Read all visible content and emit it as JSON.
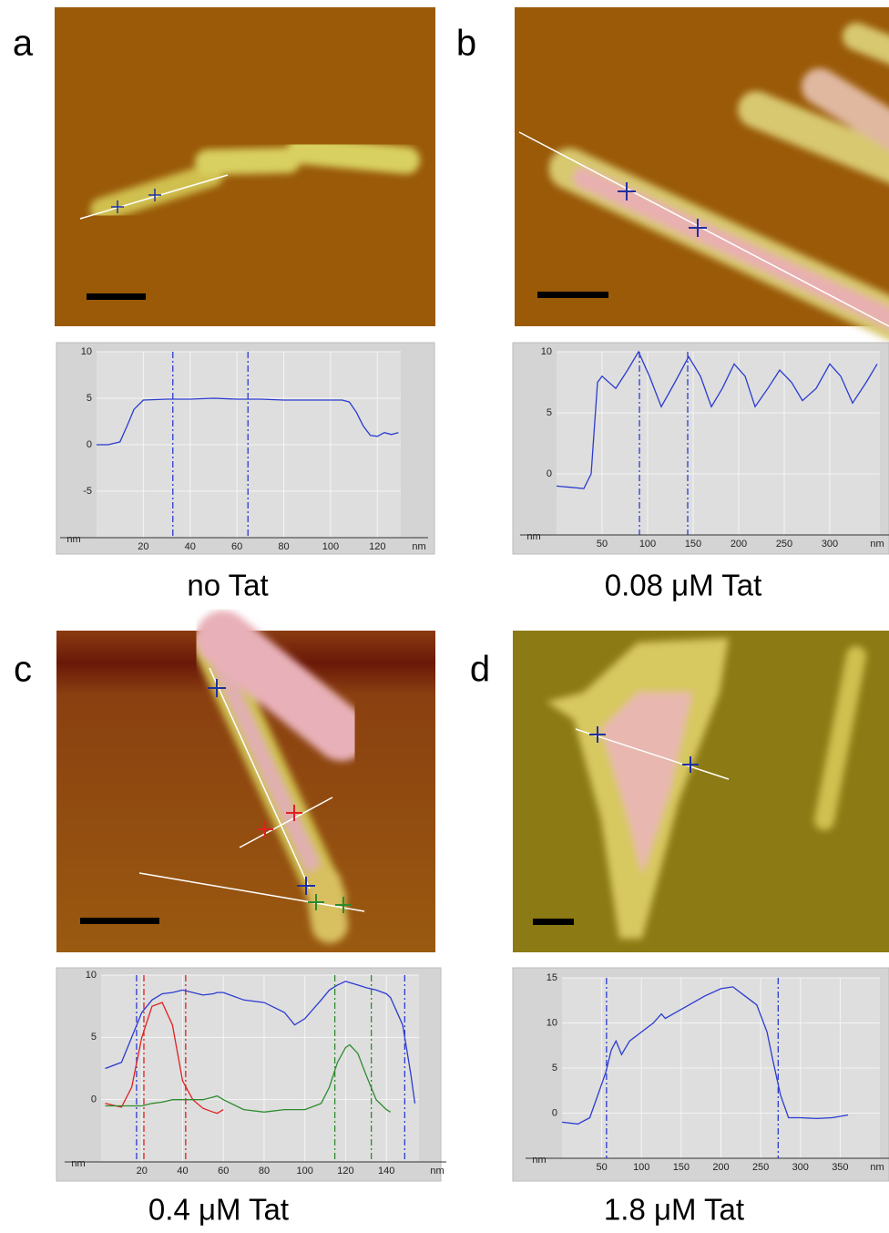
{
  "chart_data": [
    {
      "type": "line",
      "panel": "a",
      "caption": "no Tat",
      "xlabel": "nm",
      "ylabel": "nm",
      "xlim": [
        0,
        130
      ],
      "ylim": [
        -10,
        10
      ],
      "xticks": [
        20,
        40,
        60,
        80,
        100,
        120
      ],
      "yticks": [
        -5,
        0,
        5,
        10
      ],
      "grid": true,
      "x": [
        0,
        5,
        10,
        13,
        16,
        20,
        30,
        40,
        50,
        60,
        70,
        80,
        90,
        100,
        105,
        108,
        111,
        114,
        117,
        120,
        123,
        126,
        129
      ],
      "series": [
        {
          "color": "#2b3bd0",
          "values": [
            0,
            0,
            0.3,
            2,
            3.8,
            4.8,
            4.9,
            4.9,
            5,
            4.9,
            4.9,
            4.8,
            4.8,
            4.8,
            4.8,
            4.6,
            3.5,
            2,
            1,
            0.9,
            1.3,
            1.1,
            1.3
          ]
        }
      ],
      "cursors": [
        {
          "value": 32.6,
          "color": "#2b3bd0"
        },
        {
          "value": 64.7,
          "color": "#2b3bd0"
        }
      ]
    },
    {
      "type": "line",
      "panel": "b",
      "caption": "0.08 μM Tat",
      "xlabel": "nm",
      "ylabel": "nm",
      "xlim": [
        0,
        355
      ],
      "ylim": [
        -5,
        10
      ],
      "xticks": [
        50,
        100,
        150,
        200,
        250,
        300
      ],
      "yticks": [
        0,
        5,
        10
      ],
      "grid": true,
      "x": [
        0,
        15,
        30,
        38,
        45,
        50,
        65,
        78,
        90,
        102,
        115,
        130,
        145,
        158,
        170,
        182,
        195,
        207,
        218,
        232,
        245,
        258,
        270,
        285,
        300,
        312,
        325,
        340,
        352
      ],
      "series": [
        {
          "color": "#2b3bd0",
          "values": [
            -1,
            -1.1,
            -1.2,
            0,
            7.5,
            8,
            7,
            8.5,
            10,
            8,
            5.5,
            7.5,
            9.6,
            8,
            5.5,
            7,
            9,
            8,
            5.5,
            7,
            8.5,
            7.5,
            6,
            7,
            9,
            8,
            5.8,
            7.5,
            9
          ]
        }
      ],
      "cursors": [
        {
          "value": 91,
          "color": "#2b3bd0"
        },
        {
          "value": 144,
          "color": "#2b3bd0"
        }
      ]
    },
    {
      "type": "line",
      "panel": "c",
      "caption": "0.4 μM Tat",
      "xlabel": "nm",
      "ylabel": "nm",
      "xlim": [
        0,
        156
      ],
      "ylim": [
        -5,
        10
      ],
      "xticks": [
        20,
        40,
        60,
        80,
        100,
        120,
        140
      ],
      "yticks": [
        0,
        5,
        10
      ],
      "grid": true,
      "x": [
        2,
        10,
        15,
        20,
        25,
        30,
        35,
        40,
        45,
        50,
        55,
        57,
        60,
        70,
        80,
        90,
        95,
        100,
        108,
        112,
        116,
        120,
        122,
        126,
        130,
        135,
        140,
        142,
        148,
        152,
        154
      ],
      "series": [
        {
          "color": "#2b3bd0",
          "values": [
            2.5,
            3,
            5,
            7,
            8,
            8.5,
            8.6,
            8.8,
            8.6,
            8.4,
            8.5,
            8.6,
            8.6,
            8,
            7.8,
            7,
            6,
            6.5,
            8,
            8.8,
            9.2,
            9.5,
            9.4,
            9.2,
            9,
            8.8,
            8.5,
            8.2,
            6,
            2,
            -0.3
          ]
        },
        {
          "color": "#e02020",
          "values": [
            -0.3,
            -0.6,
            1,
            5,
            7.5,
            7.8,
            6,
            1.5,
            0,
            -0.7,
            -1,
            -1.1,
            -0.8,
            null,
            null,
            null,
            null,
            null,
            null,
            null,
            null,
            null,
            null,
            null,
            null,
            null,
            null,
            null,
            null,
            null,
            null
          ]
        },
        {
          "color": "#2e8b2e",
          "values": [
            -0.5,
            -0.5,
            -0.5,
            -0.5,
            -0.3,
            -0.2,
            0,
            0,
            0,
            0,
            0.2,
            0.3,
            0,
            -0.8,
            -1,
            -0.8,
            -0.8,
            -0.8,
            -0.3,
            1,
            3,
            4.2,
            4.4,
            3.7,
            2,
            0,
            -0.8,
            -1,
            null,
            null,
            null
          ]
        }
      ],
      "cursors": [
        {
          "value": 17.4,
          "color": "#2b3bd0"
        },
        {
          "value": 149,
          "color": "#2b3bd0"
        },
        {
          "value": 21,
          "color": "#e02020"
        },
        {
          "value": 41.5,
          "color": "#e02020"
        },
        {
          "value": 114.7,
          "color": "#2e8b2e"
        },
        {
          "value": 132.6,
          "color": "#2e8b2e"
        }
      ]
    },
    {
      "type": "line",
      "panel": "d",
      "caption": "1.8 μM Tat",
      "xlabel": "nm",
      "ylabel": "nm",
      "xlim": [
        0,
        400
      ],
      "ylim": [
        -5,
        15
      ],
      "xticks": [
        50,
        100,
        150,
        200,
        250,
        300,
        350
      ],
      "yticks": [
        0,
        5,
        10,
        15
      ],
      "grid": true,
      "x": [
        0,
        20,
        35,
        45,
        55,
        62,
        68,
        75,
        85,
        100,
        115,
        125,
        130,
        140,
        160,
        180,
        200,
        215,
        230,
        245,
        258,
        265,
        275,
        285,
        300,
        320,
        340,
        360
      ],
      "series": [
        {
          "color": "#2b3bd0",
          "values": [
            -1,
            -1.2,
            -0.5,
            2,
            4.5,
            7,
            8,
            6.5,
            8,
            9,
            10,
            11,
            10.5,
            11,
            12,
            13,
            13.8,
            14,
            13,
            12,
            9,
            6,
            2,
            -0.5,
            -0.5,
            -0.6,
            -0.5,
            -0.2
          ]
        }
      ],
      "cursors": [
        {
          "value": 56,
          "color": "#2b3bd0"
        },
        {
          "value": 272,
          "color": "#2b3bd0"
        }
      ]
    }
  ]
}
